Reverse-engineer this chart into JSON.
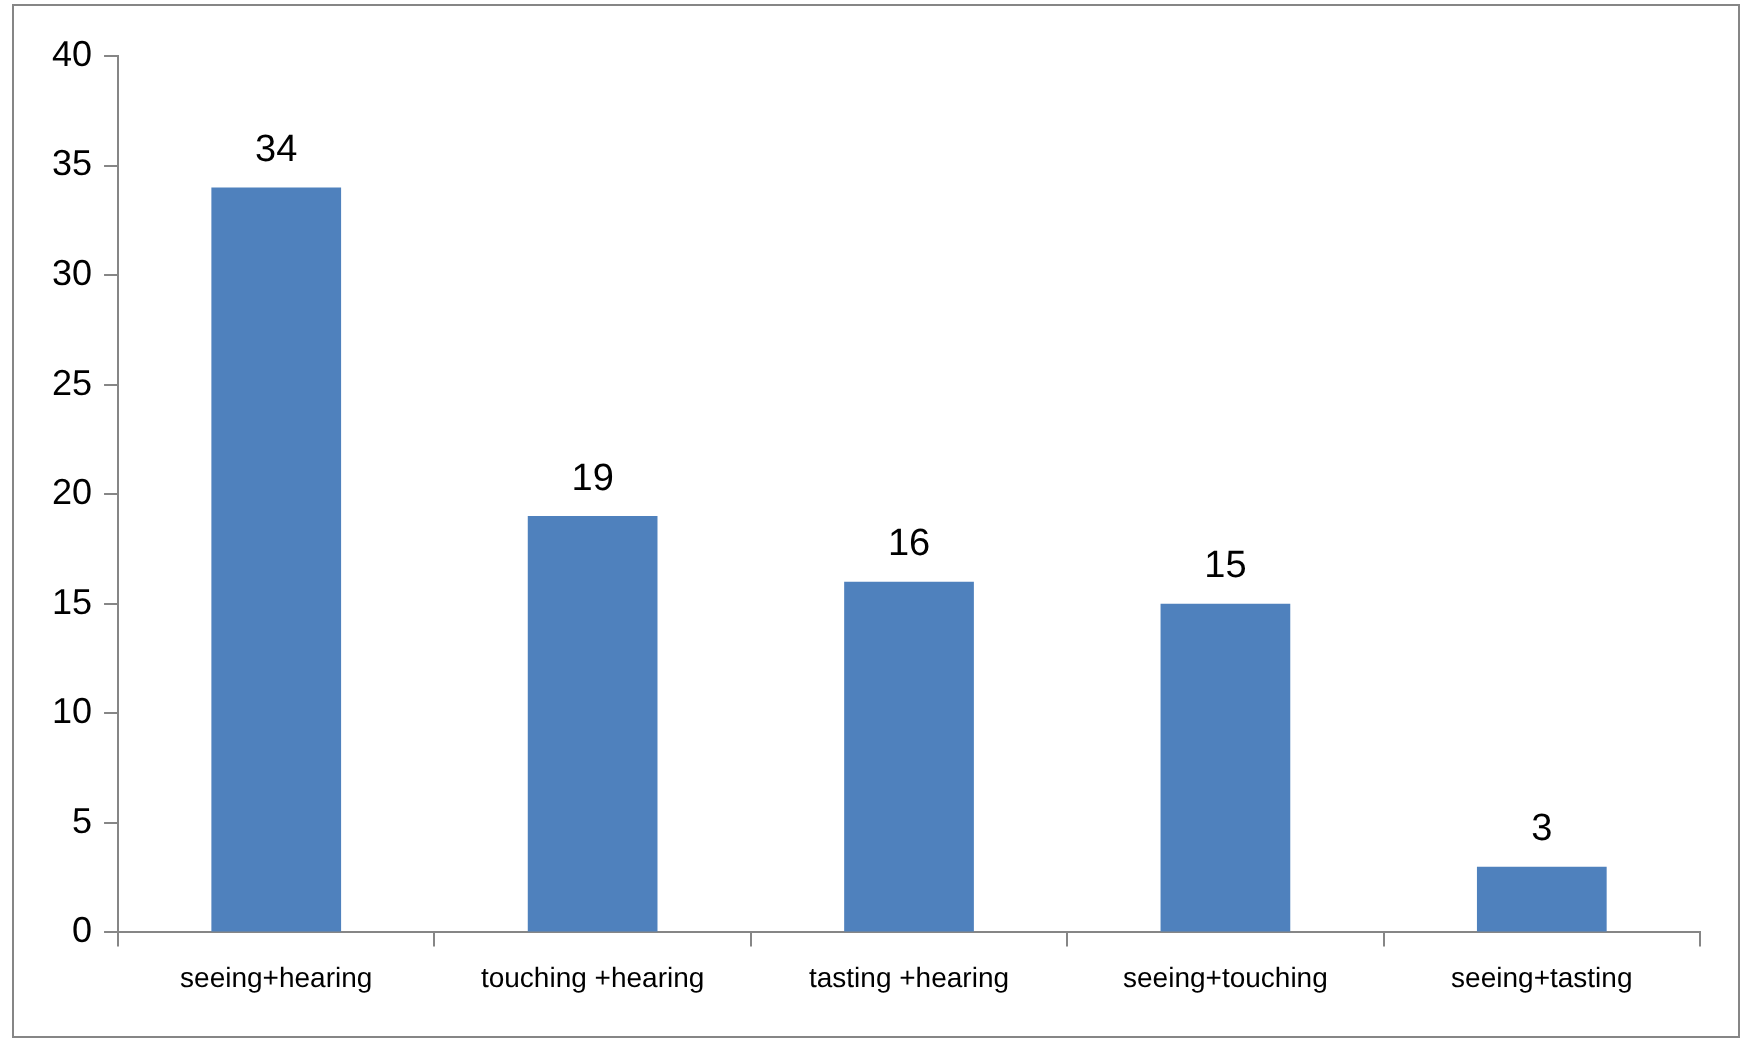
{
  "chart_data": {
    "type": "bar",
    "categories": [
      "seeing+hearing",
      "touching +hearing",
      "tasting +hearing",
      "seeing+touching",
      "seeing+tasting"
    ],
    "values": [
      34,
      19,
      16,
      15,
      3
    ],
    "color": "#4f81bd",
    "ylim": [
      0,
      40
    ],
    "yticks": [
      0,
      5,
      10,
      15,
      20,
      25,
      30,
      35,
      40
    ],
    "grid": false,
    "legend": false,
    "data_labels": true
  }
}
